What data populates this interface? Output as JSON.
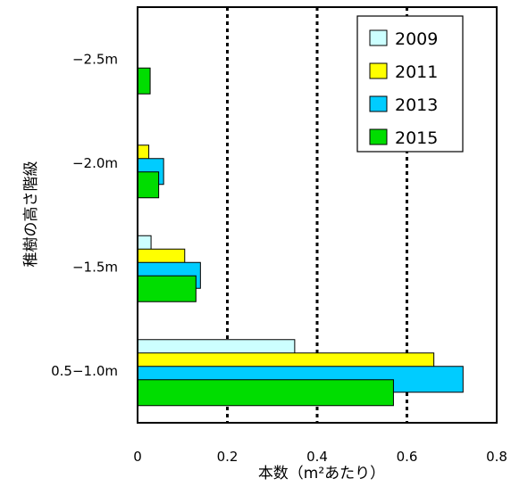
{
  "chart_data": {
    "type": "bar",
    "orientation": "horizontal",
    "categories": [
      "0.5−1.0m",
      "−1.5m",
      "−2.0m",
      "−2.5m"
    ],
    "series": [
      {
        "name": "2009",
        "color": "#ccffff",
        "values": [
          0.35,
          0.03,
          0.0,
          0.0
        ]
      },
      {
        "name": "2011",
        "color": "#ffff00",
        "values": [
          0.66,
          0.105,
          0.025,
          0.0
        ]
      },
      {
        "name": "2013",
        "color": "#00ccff",
        "values": [
          0.725,
          0.14,
          0.058,
          0.0
        ]
      },
      {
        "name": "2015",
        "color": "#00dd00",
        "values": [
          0.57,
          0.13,
          0.047,
          0.028
        ]
      }
    ],
    "xticks": [
      "0",
      "0.2",
      "0.4",
      "0.6",
      "0.8"
    ],
    "xlim": [
      0,
      0.8
    ],
    "xlabel": "本数（m²あたり）",
    "ylabel": "稚樹の高さ階級",
    "grid": "vertical dotted",
    "legend_position": "top-right"
  }
}
